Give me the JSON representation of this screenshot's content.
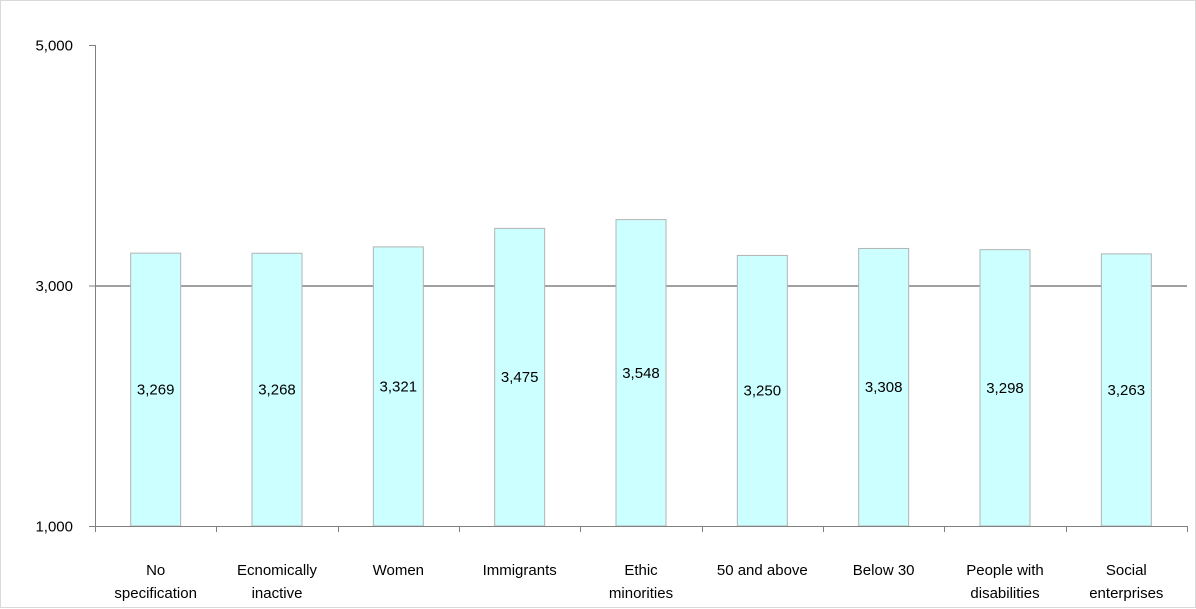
{
  "chart_data": {
    "type": "bar",
    "title": "",
    "xlabel": "",
    "ylabel": "",
    "ylim": [
      1000,
      5000
    ],
    "yticks": [
      1000,
      3000,
      5000
    ],
    "ytick_labels": [
      "1,000",
      "3,000",
      "5,000"
    ],
    "grid": "horizontal gridline at 3,000",
    "legend": "none",
    "bar_color": "#ccffff",
    "bar_border_color": "#b3b3b3",
    "categories": [
      [
        "No",
        "specification"
      ],
      [
        "Ecnomically",
        "inactive"
      ],
      [
        "Women"
      ],
      [
        "Immigrants"
      ],
      [
        "Ethic",
        "minorities"
      ],
      [
        "50 and above"
      ],
      [
        "Below 30"
      ],
      [
        "People with",
        "disabilities"
      ],
      [
        "Social",
        "enterprises"
      ]
    ],
    "values": [
      3269,
      3268,
      3321,
      3475,
      3548,
      3250,
      3308,
      3298,
      3263
    ],
    "data_labels": [
      "3,269",
      "3,268",
      "3,321",
      "3,475",
      "3,548",
      "3,250",
      "3,308",
      "3,298",
      "3,263"
    ]
  }
}
